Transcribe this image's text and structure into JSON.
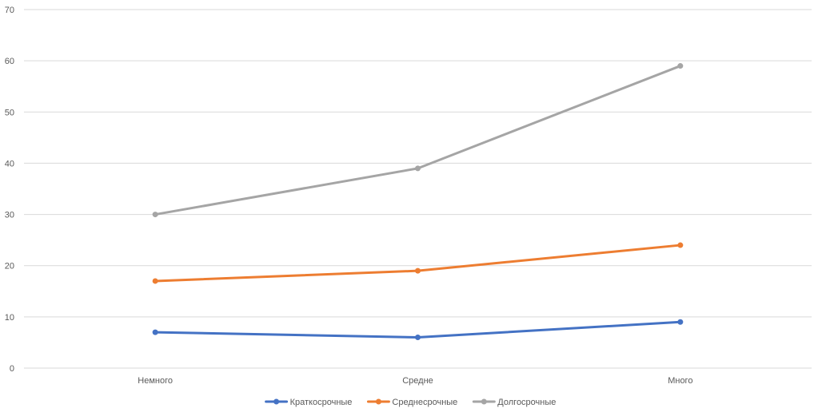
{
  "chart_data": {
    "type": "line",
    "categories": [
      "Немного",
      "Средне",
      "Много"
    ],
    "ylim": [
      0,
      70
    ],
    "yticks": [
      0,
      10,
      20,
      30,
      40,
      50,
      60,
      70
    ],
    "grid": true,
    "legend": "bottom",
    "series": [
      {
        "name": "Краткосрочные",
        "color": "#4472c4",
        "values": [
          7,
          6,
          9
        ]
      },
      {
        "name": "Среднесрочные",
        "color": "#ed7d31",
        "values": [
          17,
          19,
          24
        ]
      },
      {
        "name": "Долгосрочные",
        "color": "#a5a5a5",
        "values": [
          30,
          39,
          59
        ]
      }
    ]
  }
}
